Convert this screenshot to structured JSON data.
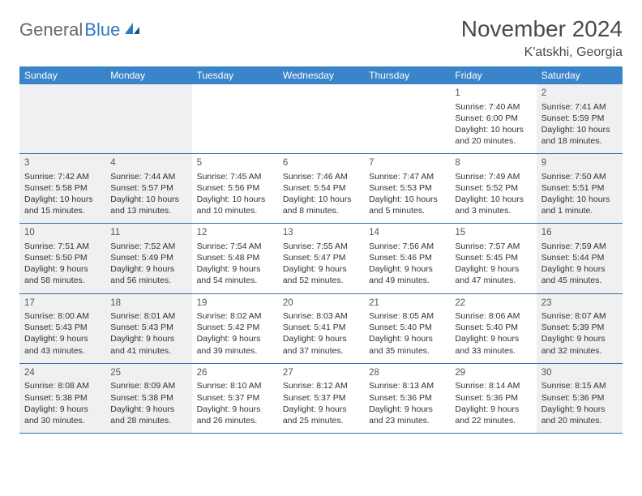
{
  "logo": {
    "general": "General",
    "blue": "Blue"
  },
  "title": "November 2024",
  "location": "K'atskhi, Georgia",
  "colors": {
    "header_bg": "#3a84c9",
    "header_text": "#ffffff",
    "row_divider": "#3a6fa8",
    "shaded_bg": "#eef0f1",
    "body_text": "#333333",
    "logo_gray": "#6a6a6a",
    "logo_blue": "#2f78c3"
  },
  "days_of_week": [
    "Sunday",
    "Monday",
    "Tuesday",
    "Wednesday",
    "Thursday",
    "Friday",
    "Saturday"
  ],
  "weeks": [
    [
      {
        "n": "",
        "sr": "",
        "ss": "",
        "dl": ""
      },
      {
        "n": "",
        "sr": "",
        "ss": "",
        "dl": ""
      },
      {
        "n": "",
        "sr": "",
        "ss": "",
        "dl": ""
      },
      {
        "n": "",
        "sr": "",
        "ss": "",
        "dl": ""
      },
      {
        "n": "",
        "sr": "",
        "ss": "",
        "dl": ""
      },
      {
        "n": "1",
        "sr": "Sunrise: 7:40 AM",
        "ss": "Sunset: 6:00 PM",
        "dl": "Daylight: 10 hours and 20 minutes."
      },
      {
        "n": "2",
        "sr": "Sunrise: 7:41 AM",
        "ss": "Sunset: 5:59 PM",
        "dl": "Daylight: 10 hours and 18 minutes."
      }
    ],
    [
      {
        "n": "3",
        "sr": "Sunrise: 7:42 AM",
        "ss": "Sunset: 5:58 PM",
        "dl": "Daylight: 10 hours and 15 minutes."
      },
      {
        "n": "4",
        "sr": "Sunrise: 7:44 AM",
        "ss": "Sunset: 5:57 PM",
        "dl": "Daylight: 10 hours and 13 minutes."
      },
      {
        "n": "5",
        "sr": "Sunrise: 7:45 AM",
        "ss": "Sunset: 5:56 PM",
        "dl": "Daylight: 10 hours and 10 minutes."
      },
      {
        "n": "6",
        "sr": "Sunrise: 7:46 AM",
        "ss": "Sunset: 5:54 PM",
        "dl": "Daylight: 10 hours and 8 minutes."
      },
      {
        "n": "7",
        "sr": "Sunrise: 7:47 AM",
        "ss": "Sunset: 5:53 PM",
        "dl": "Daylight: 10 hours and 5 minutes."
      },
      {
        "n": "8",
        "sr": "Sunrise: 7:49 AM",
        "ss": "Sunset: 5:52 PM",
        "dl": "Daylight: 10 hours and 3 minutes."
      },
      {
        "n": "9",
        "sr": "Sunrise: 7:50 AM",
        "ss": "Sunset: 5:51 PM",
        "dl": "Daylight: 10 hours and 1 minute."
      }
    ],
    [
      {
        "n": "10",
        "sr": "Sunrise: 7:51 AM",
        "ss": "Sunset: 5:50 PM",
        "dl": "Daylight: 9 hours and 58 minutes."
      },
      {
        "n": "11",
        "sr": "Sunrise: 7:52 AM",
        "ss": "Sunset: 5:49 PM",
        "dl": "Daylight: 9 hours and 56 minutes."
      },
      {
        "n": "12",
        "sr": "Sunrise: 7:54 AM",
        "ss": "Sunset: 5:48 PM",
        "dl": "Daylight: 9 hours and 54 minutes."
      },
      {
        "n": "13",
        "sr": "Sunrise: 7:55 AM",
        "ss": "Sunset: 5:47 PM",
        "dl": "Daylight: 9 hours and 52 minutes."
      },
      {
        "n": "14",
        "sr": "Sunrise: 7:56 AM",
        "ss": "Sunset: 5:46 PM",
        "dl": "Daylight: 9 hours and 49 minutes."
      },
      {
        "n": "15",
        "sr": "Sunrise: 7:57 AM",
        "ss": "Sunset: 5:45 PM",
        "dl": "Daylight: 9 hours and 47 minutes."
      },
      {
        "n": "16",
        "sr": "Sunrise: 7:59 AM",
        "ss": "Sunset: 5:44 PM",
        "dl": "Daylight: 9 hours and 45 minutes."
      }
    ],
    [
      {
        "n": "17",
        "sr": "Sunrise: 8:00 AM",
        "ss": "Sunset: 5:43 PM",
        "dl": "Daylight: 9 hours and 43 minutes."
      },
      {
        "n": "18",
        "sr": "Sunrise: 8:01 AM",
        "ss": "Sunset: 5:43 PM",
        "dl": "Daylight: 9 hours and 41 minutes."
      },
      {
        "n": "19",
        "sr": "Sunrise: 8:02 AM",
        "ss": "Sunset: 5:42 PM",
        "dl": "Daylight: 9 hours and 39 minutes."
      },
      {
        "n": "20",
        "sr": "Sunrise: 8:03 AM",
        "ss": "Sunset: 5:41 PM",
        "dl": "Daylight: 9 hours and 37 minutes."
      },
      {
        "n": "21",
        "sr": "Sunrise: 8:05 AM",
        "ss": "Sunset: 5:40 PM",
        "dl": "Daylight: 9 hours and 35 minutes."
      },
      {
        "n": "22",
        "sr": "Sunrise: 8:06 AM",
        "ss": "Sunset: 5:40 PM",
        "dl": "Daylight: 9 hours and 33 minutes."
      },
      {
        "n": "23",
        "sr": "Sunrise: 8:07 AM",
        "ss": "Sunset: 5:39 PM",
        "dl": "Daylight: 9 hours and 32 minutes."
      }
    ],
    [
      {
        "n": "24",
        "sr": "Sunrise: 8:08 AM",
        "ss": "Sunset: 5:38 PM",
        "dl": "Daylight: 9 hours and 30 minutes."
      },
      {
        "n": "25",
        "sr": "Sunrise: 8:09 AM",
        "ss": "Sunset: 5:38 PM",
        "dl": "Daylight: 9 hours and 28 minutes."
      },
      {
        "n": "26",
        "sr": "Sunrise: 8:10 AM",
        "ss": "Sunset: 5:37 PM",
        "dl": "Daylight: 9 hours and 26 minutes."
      },
      {
        "n": "27",
        "sr": "Sunrise: 8:12 AM",
        "ss": "Sunset: 5:37 PM",
        "dl": "Daylight: 9 hours and 25 minutes."
      },
      {
        "n": "28",
        "sr": "Sunrise: 8:13 AM",
        "ss": "Sunset: 5:36 PM",
        "dl": "Daylight: 9 hours and 23 minutes."
      },
      {
        "n": "29",
        "sr": "Sunrise: 8:14 AM",
        "ss": "Sunset: 5:36 PM",
        "dl": "Daylight: 9 hours and 22 minutes."
      },
      {
        "n": "30",
        "sr": "Sunrise: 8:15 AM",
        "ss": "Sunset: 5:36 PM",
        "dl": "Daylight: 9 hours and 20 minutes."
      }
    ]
  ]
}
